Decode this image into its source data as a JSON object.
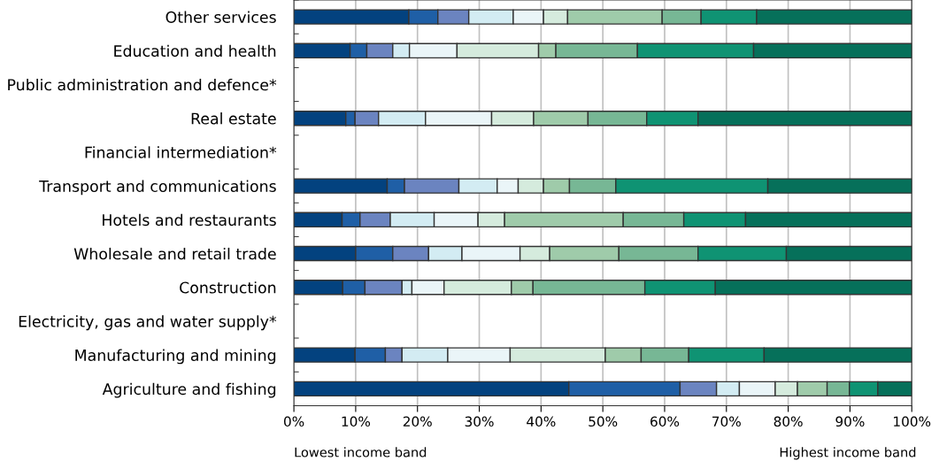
{
  "chart_data": {
    "type": "bar",
    "orientation": "horizontal",
    "stacked": true,
    "categories": [
      "Other services",
      "Education and health",
      "Public administration and defence*",
      "Real estate",
      "Financial intermediation*",
      "Transport and communications",
      "Hotels and restaurants",
      "Wholesale and retail trade",
      "Construction",
      "Electricity, gas and water supply*",
      "Manufacturing and mining",
      "Agriculture and fishing"
    ],
    "series": [
      {
        "color": "#03427f",
        "values": [
          18.6,
          9.1,
          null,
          8.4,
          null,
          15.1,
          7.8,
          10.0,
          7.9,
          null,
          9.9,
          44.5
        ]
      },
      {
        "color": "#1f5fa6",
        "values": [
          4.7,
          2.7,
          null,
          1.5,
          null,
          2.8,
          2.9,
          6.0,
          3.6,
          null,
          4.9,
          18.0
        ]
      },
      {
        "color": "#6b84c0",
        "values": [
          5.0,
          4.2,
          null,
          3.8,
          null,
          8.8,
          4.9,
          5.8,
          6.0,
          null,
          2.7,
          5.9
        ]
      },
      {
        "color": "#d3ecf3",
        "values": [
          7.2,
          2.7,
          null,
          7.6,
          null,
          6.2,
          7.1,
          5.4,
          1.6,
          null,
          7.4,
          3.7
        ]
      },
      {
        "color": "#eaf5f8",
        "values": [
          4.9,
          7.7,
          null,
          10.7,
          null,
          3.4,
          7.1,
          9.4,
          5.2,
          null,
          10.1,
          5.8
        ]
      },
      {
        "color": "#d5ebdd",
        "values": [
          3.9,
          13.2,
          null,
          6.8,
          null,
          4.1,
          4.3,
          4.8,
          10.9,
          null,
          15.4,
          3.6
        ]
      },
      {
        "color": "#9fcbaa",
        "values": [
          15.3,
          2.8,
          null,
          8.8,
          null,
          4.2,
          19.2,
          11.2,
          3.5,
          null,
          5.8,
          4.8
        ]
      },
      {
        "color": "#77b795",
        "values": [
          6.3,
          13.2,
          null,
          9.5,
          null,
          7.5,
          9.8,
          12.8,
          18.1,
          null,
          7.7,
          3.6
        ]
      },
      {
        "color": "#0f9373",
        "values": [
          9.0,
          18.8,
          null,
          8.3,
          null,
          24.6,
          10.0,
          14.3,
          11.4,
          null,
          12.2,
          4.6
        ]
      },
      {
        "color": "#06705a",
        "values": [
          25.1,
          25.6,
          null,
          34.6,
          null,
          23.3,
          26.9,
          20.3,
          31.8,
          null,
          23.9,
          5.5
        ]
      }
    ],
    "xlim": [
      0,
      100
    ],
    "xticks": [
      {
        "value": 0,
        "label": "0%"
      },
      {
        "value": 10,
        "label": "10%"
      },
      {
        "value": 20,
        "label": "20%"
      },
      {
        "value": 30,
        "label": "30%"
      },
      {
        "value": 40,
        "label": "40%"
      },
      {
        "value": 50,
        "label": "50%"
      },
      {
        "value": 60,
        "label": "60%"
      },
      {
        "value": 70,
        "label": "70%"
      },
      {
        "value": 80,
        "label": "80%"
      },
      {
        "value": 90,
        "label": "90%"
      },
      {
        "value": 100,
        "label": "100%"
      }
    ],
    "grid": "x",
    "annotations": [
      "Lowest income band",
      "Highest income band"
    ]
  }
}
